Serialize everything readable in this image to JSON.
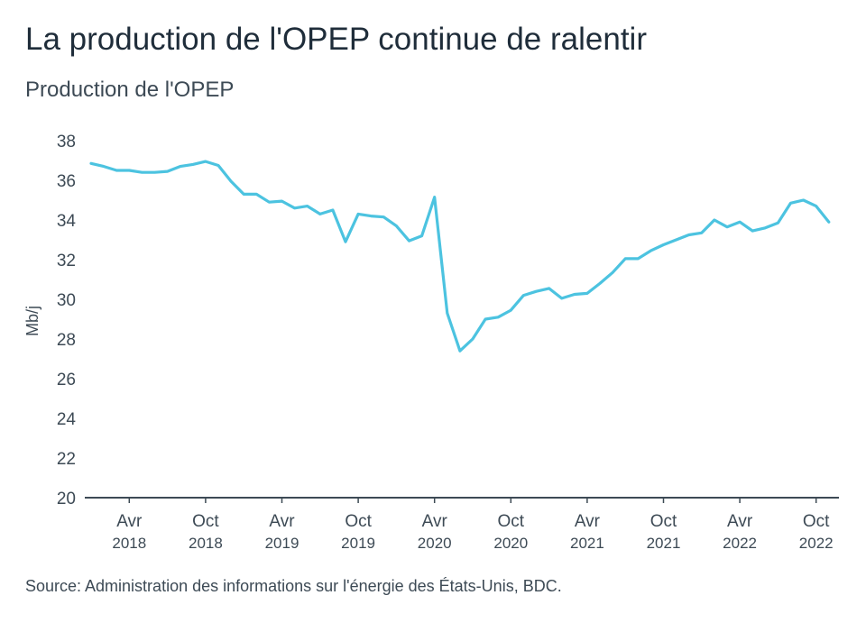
{
  "chart_data": {
    "type": "line",
    "title": "La production de l'OPEP continue de ralentir",
    "subtitle": "Production de l'OPEP",
    "ylabel": "Mb/j",
    "xlabel": "",
    "source": "Source: Administration des informations sur l'énergie des États-Unis, BDC.",
    "ylim": [
      20,
      38
    ],
    "yticks": [
      20,
      22,
      24,
      26,
      28,
      30,
      32,
      34,
      36,
      38
    ],
    "xticks": [
      {
        "month": "Avr",
        "year": "2018",
        "date": "2018-04"
      },
      {
        "month": "Oct",
        "year": "2018",
        "date": "2018-10"
      },
      {
        "month": "Avr",
        "year": "2019",
        "date": "2019-04"
      },
      {
        "month": "Oct",
        "year": "2019",
        "date": "2019-10"
      },
      {
        "month": "Avr",
        "year": "2020",
        "date": "2020-04"
      },
      {
        "month": "Oct",
        "year": "2020",
        "date": "2020-10"
      },
      {
        "month": "Avr",
        "year": "2021",
        "date": "2021-04"
      },
      {
        "month": "Oct",
        "year": "2021",
        "date": "2021-10"
      },
      {
        "month": "Avr",
        "year": "2022",
        "date": "2022-04"
      },
      {
        "month": "Oct",
        "year": "2022",
        "date": "2022-10"
      }
    ],
    "grid": false,
    "line_color": "#4cc3e0",
    "x": [
      "2018-01",
      "2018-02",
      "2018-03",
      "2018-04",
      "2018-05",
      "2018-06",
      "2018-07",
      "2018-08",
      "2018-09",
      "2018-10",
      "2018-11",
      "2018-12",
      "2019-01",
      "2019-02",
      "2019-03",
      "2019-04",
      "2019-05",
      "2019-06",
      "2019-07",
      "2019-08",
      "2019-09",
      "2019-10",
      "2019-11",
      "2019-12",
      "2020-01",
      "2020-02",
      "2020-03",
      "2020-04",
      "2020-05",
      "2020-06",
      "2020-07",
      "2020-08",
      "2020-09",
      "2020-10",
      "2020-11",
      "2020-12",
      "2021-01",
      "2021-02",
      "2021-03",
      "2021-04",
      "2021-05",
      "2021-06",
      "2021-07",
      "2021-08",
      "2021-09",
      "2021-10",
      "2021-11",
      "2021-12",
      "2022-01",
      "2022-02",
      "2022-03",
      "2022-04",
      "2022-05",
      "2022-06",
      "2022-07",
      "2022-08",
      "2022-09",
      "2022-10",
      "2022-11"
    ],
    "series": [
      {
        "values": [
          36.85,
          36.7,
          36.5,
          36.5,
          36.4,
          36.4,
          36.45,
          36.7,
          36.8,
          36.95,
          36.75,
          35.95,
          35.3,
          35.3,
          34.9,
          34.95,
          34.6,
          34.7,
          34.3,
          34.5,
          32.9,
          34.3,
          34.2,
          34.15,
          33.7,
          32.95,
          33.2,
          35.15,
          29.3,
          27.4,
          28.0,
          29.0,
          29.1,
          29.45,
          30.2,
          30.4,
          30.55,
          30.05,
          30.25,
          30.3,
          30.8,
          31.35,
          32.05,
          32.05,
          32.45,
          32.75,
          33.0,
          33.25,
          33.35,
          34.0,
          33.65,
          33.9,
          33.45,
          33.6,
          33.85,
          34.85,
          35.0,
          34.7,
          33.9
        ]
      }
    ]
  }
}
